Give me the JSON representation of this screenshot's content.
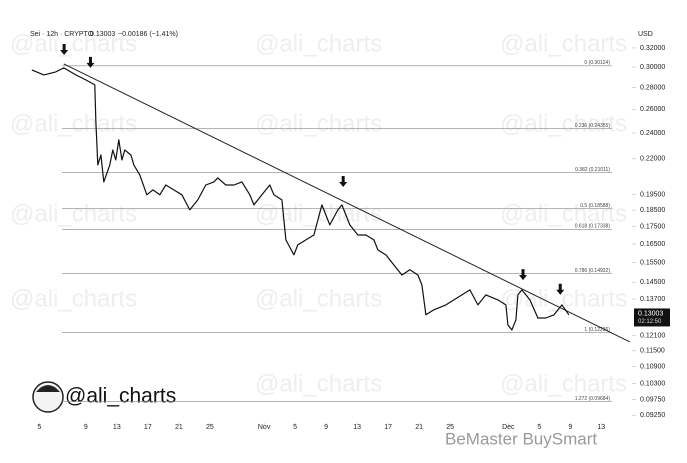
{
  "chart_data": {
    "type": "line",
    "title": "Sei · 12h · CRYPTO",
    "last": "0.13003",
    "change": "−0.00186 (−1.41%)",
    "axis_label": "USD",
    "log_scale": true,
    "grid": false,
    "color": "#111111",
    "xlim": [
      1.8,
      79.2
    ],
    "ylim": [
      0.0895,
      0.34
    ],
    "xticks": [
      {
        "value": 3,
        "label": "5"
      },
      {
        "value": 9,
        "label": "9"
      },
      {
        "value": 13,
        "label": "13"
      },
      {
        "value": 17,
        "label": "17"
      },
      {
        "value": 21,
        "label": "21"
      },
      {
        "value": 25,
        "label": "25"
      },
      {
        "value": 32,
        "label": "Nov"
      },
      {
        "value": 36,
        "label": "5"
      },
      {
        "value": 40,
        "label": "9"
      },
      {
        "value": 44,
        "label": "13"
      },
      {
        "value": 48,
        "label": "17"
      },
      {
        "value": 52,
        "label": "21"
      },
      {
        "value": 56,
        "label": "25"
      },
      {
        "value": 63.5,
        "label": "Dec"
      },
      {
        "value": 67.5,
        "label": "5"
      },
      {
        "value": 71.5,
        "label": "9"
      },
      {
        "value": 75.5,
        "label": "13"
      }
    ],
    "yticks": [
      {
        "value": 0.32,
        "label": "0.32000"
      },
      {
        "value": 0.3,
        "label": "0.30000"
      },
      {
        "value": 0.28,
        "label": "0.28000"
      },
      {
        "value": 0.26,
        "label": "0.26000"
      },
      {
        "value": 0.24,
        "label": "0.24000"
      },
      {
        "value": 0.22,
        "label": "0.22000"
      },
      {
        "value": 0.195,
        "label": "0.19500"
      },
      {
        "value": 0.185,
        "label": "0.18500"
      },
      {
        "value": 0.175,
        "label": "0.17500"
      },
      {
        "value": 0.165,
        "label": "0.16500"
      },
      {
        "value": 0.155,
        "label": "0.15500"
      },
      {
        "value": 0.145,
        "label": "0.14500"
      },
      {
        "value": 0.137,
        "label": "0.13700"
      },
      {
        "value": 0.121,
        "label": "0.12100"
      },
      {
        "value": 0.115,
        "label": "0.11500"
      },
      {
        "value": 0.109,
        "label": "0.10900"
      },
      {
        "value": 0.103,
        "label": "0.10300"
      },
      {
        "value": 0.0975,
        "label": "0.09750"
      },
      {
        "value": 0.0925,
        "label": "0.09250"
      }
    ],
    "series": [
      {
        "color": "#111111",
        "x": [
          2.03,
          3.58,
          5.13,
          6.16,
          7.71,
          9,
          10.16,
          10.29,
          10.55,
          10.94,
          11.32,
          12.1,
          12.48,
          12.87,
          13.26,
          13.65,
          14.03,
          14.81,
          15.19,
          15.97,
          16.87,
          17.65,
          18.55,
          19.32,
          20.35,
          21.39,
          22.42,
          23.45,
          24.48,
          25.52,
          26.03,
          27.06,
          28.1,
          29.13,
          30.16,
          30.68,
          31.71,
          32.74,
          33.26,
          34.29,
          34.81,
          35.84,
          36.35,
          37.39,
          38.42,
          39.45,
          40.48,
          41.52,
          42.03,
          43.06,
          44.1,
          45.13,
          46.16,
          46.68,
          47.71,
          48.74,
          49.77,
          50.81,
          51.84,
          52.35,
          52.87,
          53.9,
          55.45,
          56.48,
          57.52,
          58.55,
          59.58,
          60.61,
          62.16,
          63.19,
          63.45,
          63.97,
          64.48,
          64.74,
          65.26,
          66.29,
          67.32,
          68.35,
          69.39,
          70.42,
          71.32
        ],
        "values": [
          0.2971,
          0.2921,
          0.2951,
          0.2991,
          0.2921,
          0.2872,
          0.2824,
          0.2509,
          0.2155,
          0.2229,
          0.2035,
          0.2155,
          0.2267,
          0.2192,
          0.2345,
          0.2192,
          0.2267,
          0.2229,
          0.2155,
          0.2084,
          0.1948,
          0.1981,
          0.1948,
          0.2014,
          0.1981,
          0.1948,
          0.1851,
          0.1915,
          0.2014,
          0.2035,
          0.2063,
          0.2014,
          0.2014,
          0.2035,
          0.1948,
          0.1883,
          0.1948,
          0.2014,
          0.1948,
          0.1915,
          0.1673,
          0.159,
          0.1645,
          0.1673,
          0.1701,
          0.1883,
          0.176,
          0.1851,
          0.1883,
          0.176,
          0.1701,
          0.1701,
          0.1673,
          0.1617,
          0.159,
          0.1537,
          0.1486,
          0.1512,
          0.1486,
          0.1437,
          0.1299,
          0.1321,
          0.1343,
          0.1366,
          0.1389,
          0.1413,
          0.1343,
          0.1389,
          0.1366,
          0.1343,
          0.1255,
          0.1234,
          0.1277,
          0.1389,
          0.1413,
          0.1366,
          0.1285,
          0.1285,
          0.1299,
          0.1343,
          0.1299
        ]
      }
    ],
    "trendline": {
      "x": [
        6.16,
        79.19
      ],
      "values": [
        0.3032,
        0.1185
      ]
    },
    "markers": {
      "x": [
        6.2,
        9.6,
        42.2,
        65.4,
        70.2
      ],
      "values": [
        0.3125,
        0.2991,
        0.2,
        0.146,
        0.139
      ]
    },
    "fib_levels": [
      {
        "label": "0 (0.30124)",
        "value": 0.30124
      },
      {
        "label": "0.236 (0.24355)",
        "value": 0.24355
      },
      {
        "label": "0.382 (0.21011)",
        "value": 0.21011
      },
      {
        "label": "0.5 (0.18588)",
        "value": 0.18588
      },
      {
        "label": "0.618 (0.17338)",
        "value": 0.17338
      },
      {
        "label": "0.786 (0.14922)",
        "value": 0.14922
      },
      {
        "label": "1 (0.12236)",
        "value": 0.12236
      },
      {
        "label": "1.272 (0.09684)",
        "value": 0.09684
      }
    ],
    "price_tag": 0.13003,
    "countdown": "02:12:50",
    "watermark": "@ali_charts",
    "logo_text": "@ali_charts",
    "footer": "BeMaster BuySmart"
  }
}
